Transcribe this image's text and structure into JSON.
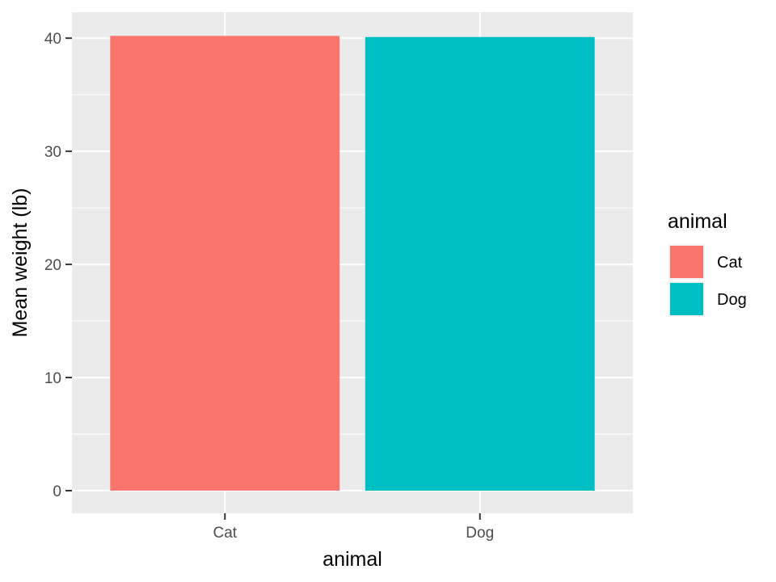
{
  "chart_data": {
    "type": "bar",
    "title": "",
    "xlabel": "animal",
    "ylabel": "Mean weight (lb)",
    "categories": [
      "Cat",
      "Dog"
    ],
    "values": [
      40.2,
      40.1
    ],
    "ylim": [
      -2,
      42.3
    ],
    "yticks": [
      0,
      10,
      20,
      30,
      40
    ],
    "ytick_labels": [
      "0",
      "10",
      "20",
      "30",
      "40"
    ],
    "grid": true,
    "legend": {
      "title": "animal",
      "placement": "right",
      "entries": [
        "Cat",
        "Dog"
      ]
    },
    "colors": {
      "Cat": "#F8766D",
      "Dog": "#00BFC4"
    },
    "panel_background": "#EBEBEB",
    "grid_color": "#FFFFFF"
  }
}
